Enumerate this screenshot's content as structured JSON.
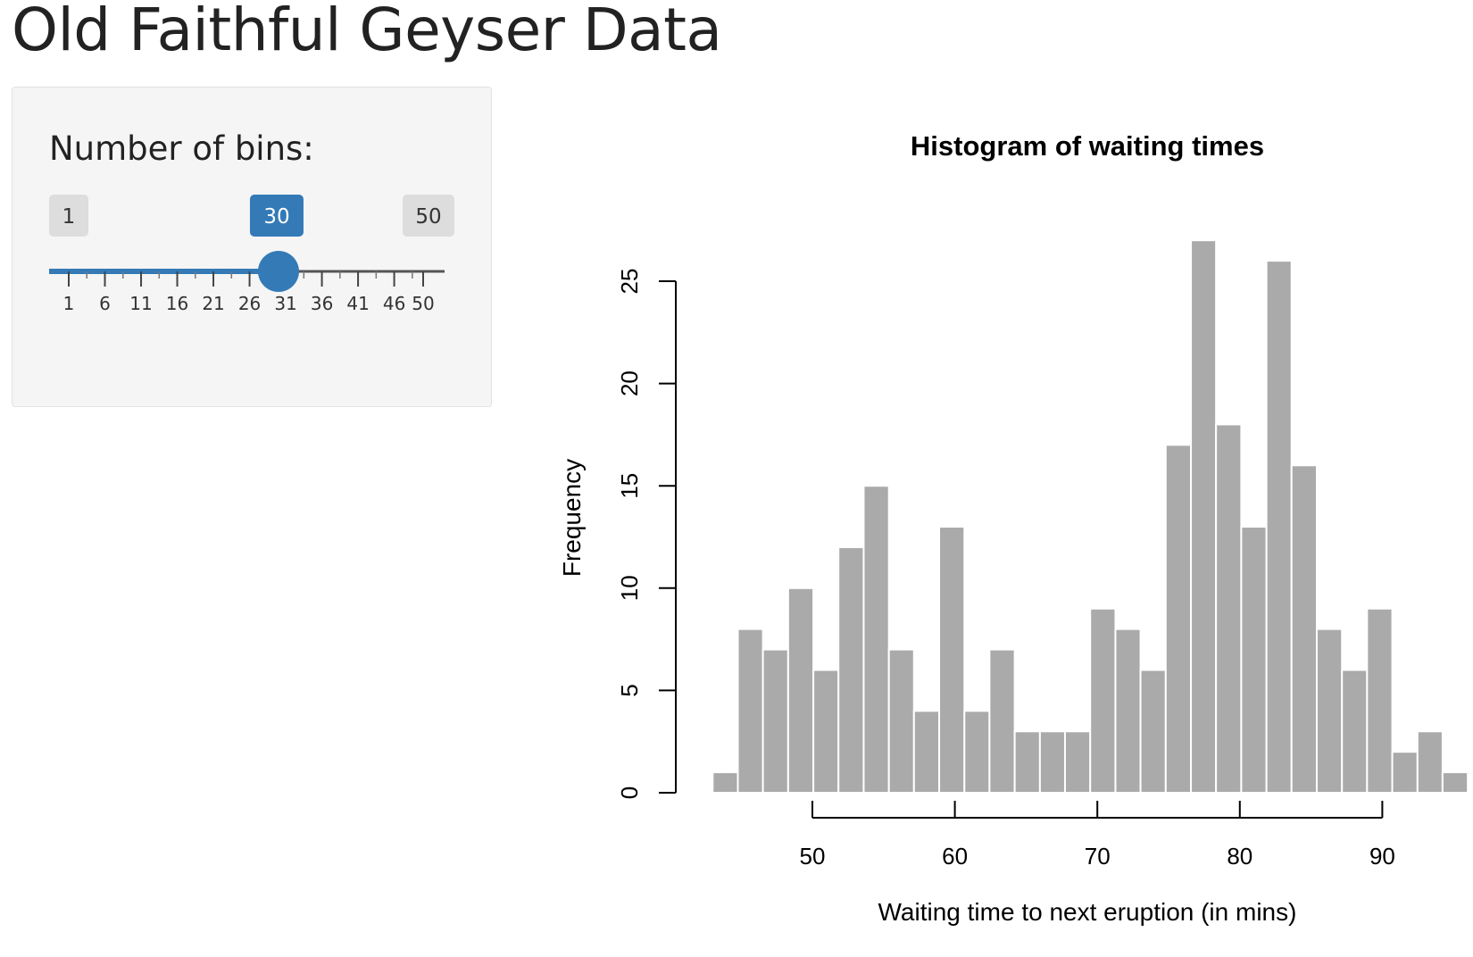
{
  "page": {
    "title": "Old Faithful Geyser Data"
  },
  "sidebar": {
    "input_label": "Number of bins:",
    "slider": {
      "min": 1,
      "max": 50,
      "value": 30,
      "min_label": "1",
      "max_label": "50",
      "value_label": "30",
      "grid_labels": [
        "1",
        "6",
        "11",
        "16",
        "21",
        "26",
        "31",
        "36",
        "41",
        "46",
        "50"
      ],
      "accent_color": "#337ab7"
    }
  },
  "chart_data": {
    "type": "bar",
    "title": "Histogram of waiting times",
    "xlabel": "Waiting time to next eruption (in mins)",
    "ylabel": "Frequency",
    "bar_color": "#aaaaaa",
    "bin_edges": [
      43.0,
      44.77,
      46.53,
      48.3,
      50.07,
      51.83,
      53.6,
      55.37,
      57.13,
      58.9,
      60.67,
      62.43,
      64.2,
      65.97,
      67.73,
      69.5,
      71.27,
      73.03,
      74.8,
      76.57,
      78.33,
      80.1,
      81.87,
      83.63,
      85.4,
      87.17,
      88.93,
      90.7,
      92.47,
      94.23,
      96.0
    ],
    "values": [
      1,
      8,
      7,
      10,
      6,
      12,
      15,
      7,
      4,
      13,
      4,
      7,
      3,
      3,
      3,
      9,
      8,
      6,
      17,
      27,
      18,
      13,
      26,
      16,
      8,
      6,
      9,
      2,
      3,
      1
    ],
    "xlim": [
      43,
      96
    ],
    "ylim": [
      0,
      27
    ],
    "x_ticks": [
      50,
      60,
      70,
      80,
      90
    ],
    "y_ticks": [
      0,
      5,
      10,
      15,
      20,
      25
    ],
    "x_tick_labels": [
      "50",
      "60",
      "70",
      "80",
      "90"
    ],
    "y_tick_labels": [
      "0",
      "5",
      "10",
      "15",
      "20",
      "25"
    ],
    "grid": false
  }
}
